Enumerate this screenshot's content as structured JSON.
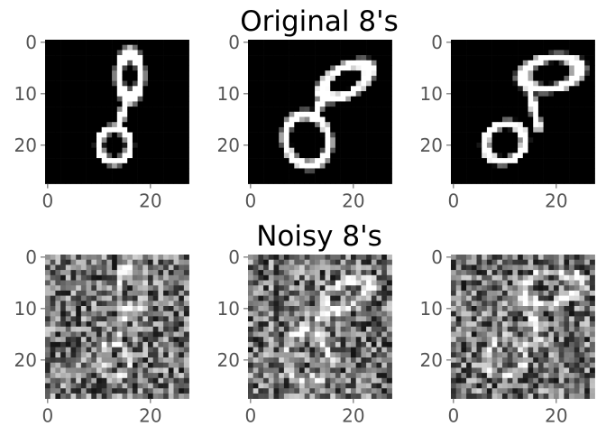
{
  "figure": {
    "row_titles": [
      "Original 8's",
      "Noisy 8's"
    ]
  },
  "chart_data": [
    {
      "type": "heatmap",
      "title": "Original 8's",
      "colormap": "gray",
      "grid": false,
      "image_size": [
        28,
        28
      ],
      "panels": [
        {
          "name": "",
          "content": "digit-8 image"
        },
        {
          "name": "",
          "content": "digit-8 image"
        },
        {
          "name": "",
          "content": "digit-8 image"
        }
      ],
      "xticks": [
        0,
        20
      ],
      "yticks": [
        0,
        10,
        20
      ],
      "xlim": [
        -0.5,
        27.5
      ],
      "ylim": [
        27.5,
        -0.5
      ]
    },
    {
      "type": "heatmap",
      "title": "Noisy 8's",
      "colormap": "gray",
      "grid": false,
      "image_size": [
        28,
        28
      ],
      "panels": [
        {
          "name": "",
          "content": "noisy digit-8 image"
        },
        {
          "name": "",
          "content": "noisy digit-8 image"
        },
        {
          "name": "",
          "content": "noisy digit-8 image"
        }
      ],
      "xticks": [
        0,
        20
      ],
      "yticks": [
        0,
        10,
        20
      ],
      "xlim": [
        -0.5,
        27.5
      ],
      "ylim": [
        27.5,
        -0.5
      ]
    }
  ],
  "colors": {
    "background": "#ffffff",
    "tick_text": "#555555",
    "title_text": "#000000"
  }
}
